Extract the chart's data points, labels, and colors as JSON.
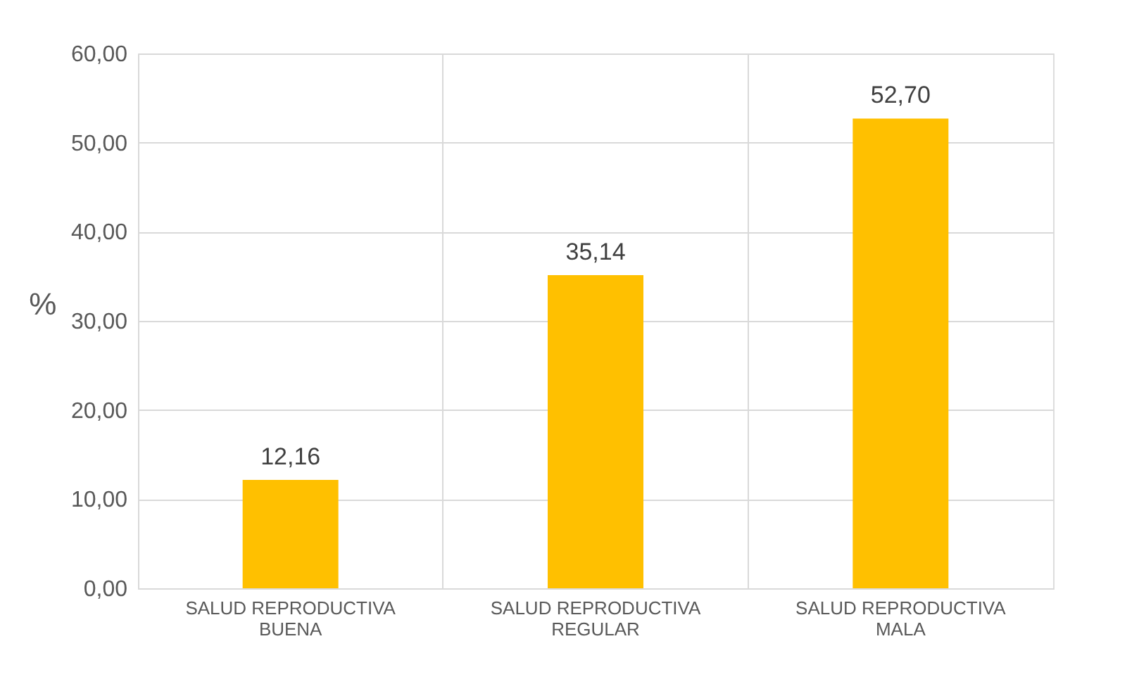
{
  "chart_data": {
    "type": "bar",
    "categories": [
      "SALUD REPRODUCTIVA BUENA",
      "SALUD REPRODUCTIVA REGULAR",
      "SALUD REPRODUCTIVA MALA"
    ],
    "values": [
      12.16,
      35.14,
      52.7
    ],
    "value_labels": [
      "12,16",
      "35,14",
      "52,70"
    ],
    "color": "#ffc000",
    "ylabel": "%",
    "ylim": [
      0,
      60
    ],
    "yticks": [
      {
        "value": 0,
        "label": "0,00"
      },
      {
        "value": 10,
        "label": "10,00"
      },
      {
        "value": 20,
        "label": "20,00"
      },
      {
        "value": 30,
        "label": "30,00"
      },
      {
        "value": 40,
        "label": "40,00"
      },
      {
        "value": 50,
        "label": "50,00"
      },
      {
        "value": 60,
        "label": "60,00"
      }
    ],
    "grid": true
  }
}
